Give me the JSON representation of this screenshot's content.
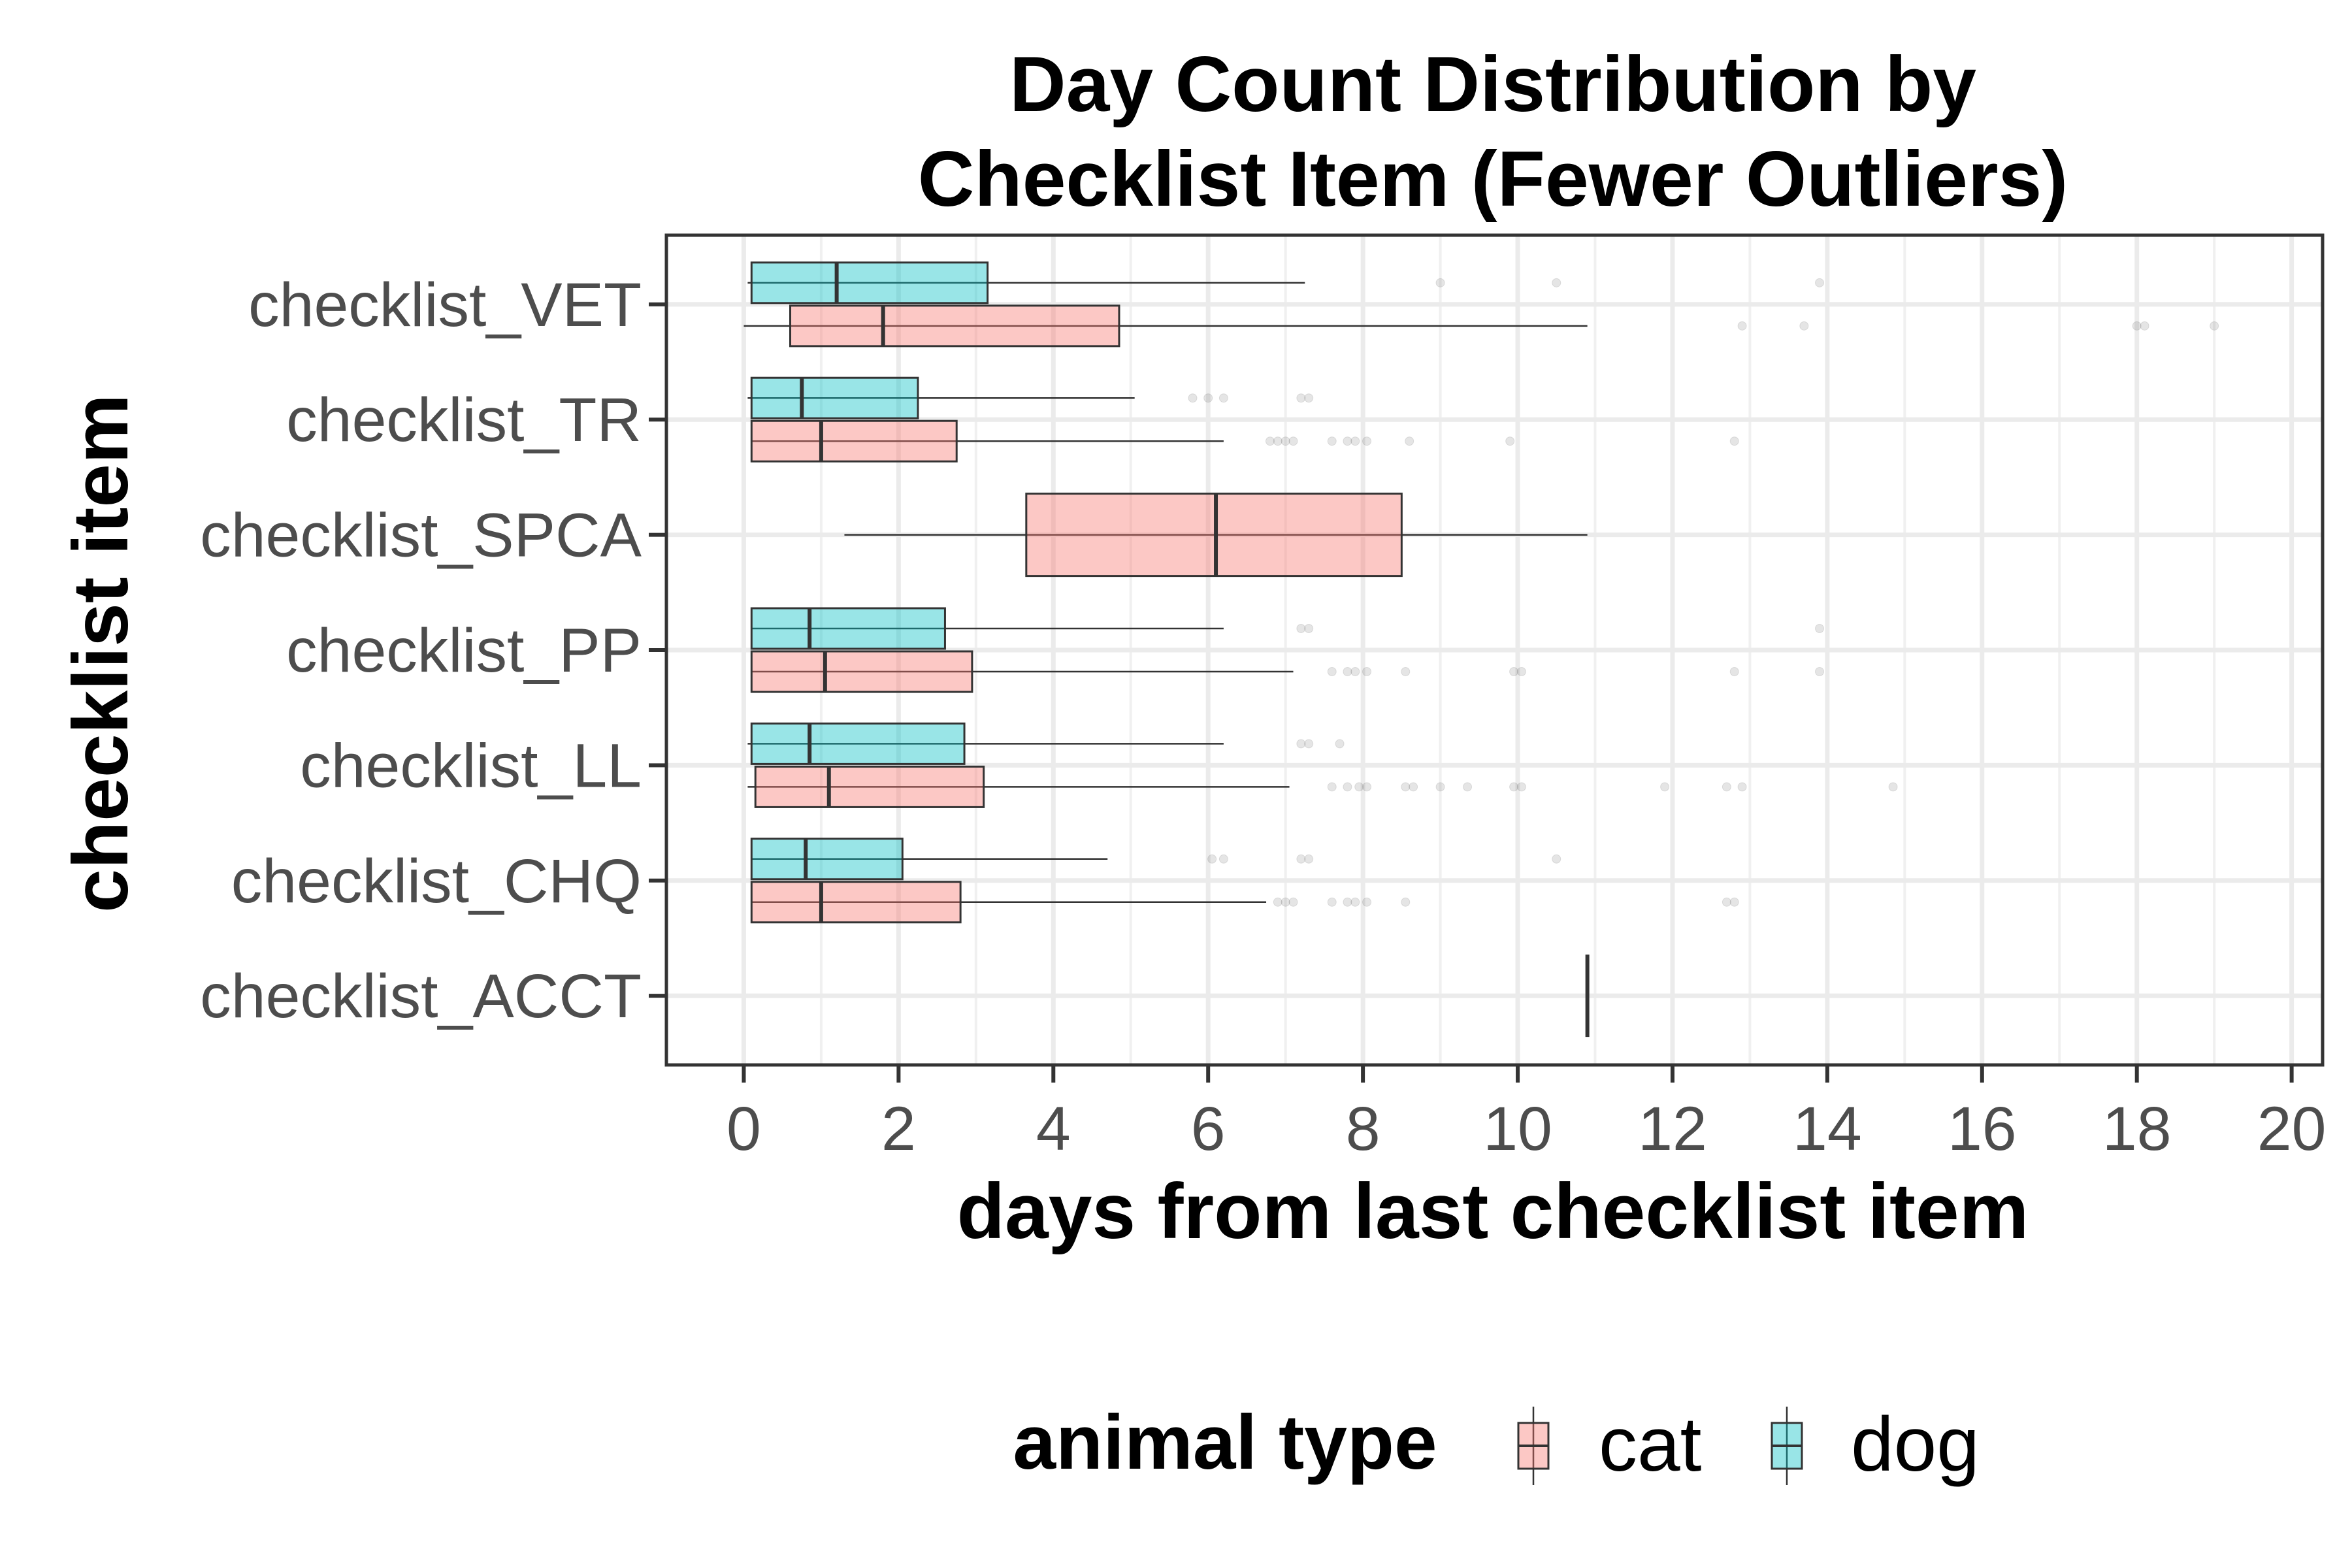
{
  "chart_data": {
    "type": "boxplot",
    "orientation": "horizontal",
    "title_lines": [
      "Day Count Distribution by",
      "Checklist Item (Fewer Outliers)"
    ],
    "xlabel": "days from last checklist item",
    "ylabel": "checklist item",
    "xlim": [
      -1,
      20.4
    ],
    "x_ticks": [
      0,
      2,
      4,
      6,
      8,
      10,
      12,
      14,
      16,
      18,
      20
    ],
    "x_tick_labels": [
      "0",
      "2",
      "4",
      "6",
      "8",
      "10",
      "12",
      "14",
      "16",
      "18",
      "20"
    ],
    "categories": [
      "checklist_VET",
      "checklist_TR",
      "checklist_SPCA",
      "checklist_PP",
      "checklist_LL",
      "checklist_CHQ",
      "checklist_ACCT"
    ],
    "grid": true,
    "legend": {
      "title": "animal type",
      "position": "bottom",
      "entries": [
        {
          "name": "cat",
          "color": "#F8766D"
        },
        {
          "name": "dog",
          "color": "#00BFC4"
        }
      ]
    },
    "series": [
      {
        "name": "cat",
        "color": "#F8766D",
        "boxes": [
          {
            "category": "checklist_VET",
            "whisker_low": 0.0,
            "q1": 0.6,
            "median": 1.8,
            "q3": 4.85,
            "whisker_high": 10.9,
            "outliers": [
              12.9,
              13.7,
              18.0,
              18.1,
              19.0
            ]
          },
          {
            "category": "checklist_TR",
            "whisker_low": 0.1,
            "q1": 0.1,
            "median": 1.0,
            "q3": 2.75,
            "whisker_high": 6.2,
            "outliers": [
              6.8,
              6.9,
              7.0,
              7.1,
              7.6,
              7.8,
              7.9,
              8.05,
              8.6,
              9.9,
              12.8
            ]
          },
          {
            "category": "checklist_SPCA",
            "whisker_low": 1.3,
            "q1": 3.65,
            "median": 6.1,
            "q3": 8.5,
            "whisker_high": 10.9,
            "outliers": []
          },
          {
            "category": "checklist_PP",
            "whisker_low": 0.1,
            "q1": 0.1,
            "median": 1.05,
            "q3": 2.95,
            "whisker_high": 7.1,
            "outliers": [
              7.6,
              7.8,
              7.9,
              8.05,
              8.55,
              9.95,
              10.05,
              12.8,
              13.9
            ]
          },
          {
            "category": "checklist_LL",
            "whisker_low": 0.05,
            "q1": 0.15,
            "median": 1.1,
            "q3": 3.1,
            "whisker_high": 7.05,
            "outliers": [
              7.6,
              7.8,
              7.95,
              8.05,
              8.55,
              8.65,
              9.0,
              9.35,
              9.95,
              10.05,
              11.9,
              12.7,
              12.9,
              14.85
            ]
          },
          {
            "category": "checklist_CHQ",
            "whisker_low": 0.1,
            "q1": 0.1,
            "median": 1.0,
            "q3": 2.8,
            "whisker_high": 6.75,
            "outliers": [
              6.9,
              7.0,
              7.1,
              7.6,
              7.8,
              7.9,
              8.05,
              8.55,
              12.7,
              12.8
            ]
          },
          {
            "category": "checklist_ACCT",
            "whisker_low": 10.9,
            "q1": 10.9,
            "median": 10.9,
            "q3": 10.9,
            "whisker_high": 10.9,
            "outliers": []
          }
        ]
      },
      {
        "name": "dog",
        "color": "#00BFC4",
        "boxes": [
          {
            "category": "checklist_VET",
            "whisker_low": 0.05,
            "q1": 0.1,
            "median": 1.2,
            "q3": 3.15,
            "whisker_high": 7.25,
            "outliers": [
              9.0,
              10.5,
              13.9
            ]
          },
          {
            "category": "checklist_TR",
            "whisker_low": 0.05,
            "q1": 0.1,
            "median": 0.75,
            "q3": 2.25,
            "whisker_high": 5.05,
            "outliers": [
              5.8,
              6.0,
              6.2,
              7.2,
              7.3
            ]
          },
          {
            "category": "checklist_PP",
            "whisker_low": 0.1,
            "q1": 0.1,
            "median": 0.85,
            "q3": 2.6,
            "whisker_high": 6.2,
            "outliers": [
              7.2,
              7.3,
              13.9
            ]
          },
          {
            "category": "checklist_LL",
            "whisker_low": 0.05,
            "q1": 0.1,
            "median": 0.85,
            "q3": 2.85,
            "whisker_high": 6.2,
            "outliers": [
              7.2,
              7.3,
              7.7
            ]
          },
          {
            "category": "checklist_CHQ",
            "whisker_low": 0.1,
            "q1": 0.1,
            "median": 0.8,
            "q3": 2.05,
            "whisker_high": 4.7,
            "outliers": [
              6.05,
              6.2,
              7.2,
              7.3,
              10.5
            ]
          }
        ]
      }
    ]
  }
}
